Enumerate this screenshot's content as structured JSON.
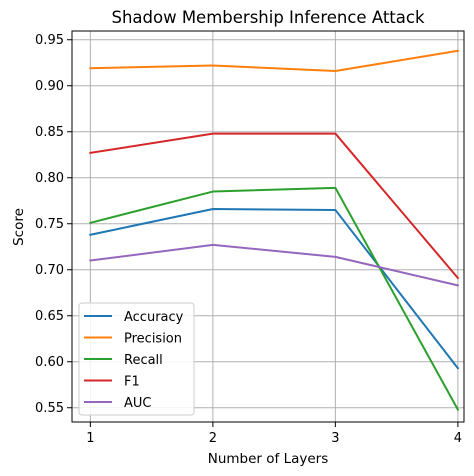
{
  "chart_data": {
    "type": "line",
    "title": "Shadow Membership Inference Attack",
    "xlabel": "Number of Layers",
    "ylabel": "Score",
    "x": [
      1,
      2,
      3,
      4
    ],
    "xticks": [
      "1",
      "2",
      "3",
      "4"
    ],
    "xlim": [
      0.85,
      4.05
    ],
    "yticks": [
      "0.55",
      "0.60",
      "0.65",
      "0.70",
      "0.75",
      "0.80",
      "0.85",
      "0.90",
      "0.95"
    ],
    "ylim": [
      0.5345,
      0.9595
    ],
    "grid": true,
    "legend_position": "lower-left",
    "series": [
      {
        "name": "Accuracy",
        "color": "#1f77b4",
        "values": [
          0.738,
          0.766,
          0.765,
          0.593
        ]
      },
      {
        "name": "Precision",
        "color": "#ff7f0e",
        "values": [
          0.919,
          0.922,
          0.916,
          0.938
        ]
      },
      {
        "name": "Recall",
        "color": "#2ca02c",
        "values": [
          0.751,
          0.785,
          0.789,
          0.548
        ]
      },
      {
        "name": "F1",
        "color": "#d62728",
        "values": [
          0.827,
          0.848,
          0.848,
          0.691
        ]
      },
      {
        "name": "AUC",
        "color": "#9467bd",
        "values": [
          0.71,
          0.727,
          0.714,
          0.683
        ]
      }
    ]
  }
}
